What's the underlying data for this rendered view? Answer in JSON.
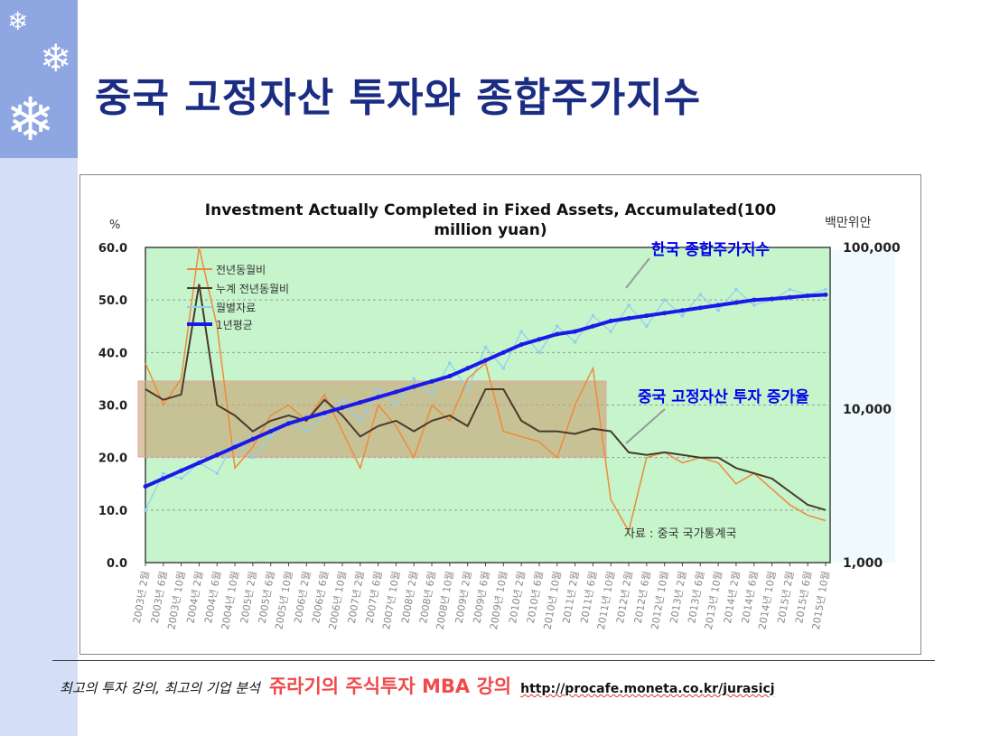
{
  "slide": {
    "title": "중국 고정자산 투자와 종합주가지수",
    "footer_left": "최고의 투자 강의, 최고의 기업 분석",
    "footer_brand": "쥬라기의 주식투자 MBA 강의",
    "footer_url": "http://procafe.moneta.co.kr/jurasicj"
  },
  "chart_data": {
    "type": "line",
    "title_line1": "Investment Actually Completed in Fixed Assets, Accumulated(100",
    "title_line2": "million yuan)",
    "ylabel_left": "%",
    "ylabel_right": "백만위안",
    "ylim": [
      0,
      60
    ],
    "yticks_left": [
      "60.0",
      "50.0",
      "40.0",
      "30.0",
      "20.0",
      "10.0",
      "0.0"
    ],
    "yticks_right": [
      "100,000",
      "10,000",
      "1,000"
    ],
    "grid": true,
    "legend_position": "top-left",
    "legend": [
      "전년동월비",
      "누계 전년동월비",
      "월별자료",
      "1년평균"
    ],
    "annotations": [
      "한국 종합주가지수",
      "중국 고정자산 투자 증가율",
      "자료 : 중국 국가통계국"
    ],
    "colors": {
      "yoy": "#f08a3a",
      "cumulative": "#4a3a2a",
      "monthly": "#8fd0f0",
      "avg": "#1a1ae8",
      "plot_bg": "#c8f5cc",
      "band": "#c8a878"
    },
    "categories": [
      "2003년 2월",
      "2003년 6월",
      "2003년 10월",
      "2004년 2월",
      "2004년 6월",
      "2004년 10월",
      "2005년 2월",
      "2005년 6월",
      "2005년 10월",
      "2006년 2월",
      "2006년 6월",
      "2006년 10월",
      "2007년 2월",
      "2007년 6월",
      "2007년 10월",
      "2008년 2월",
      "2008년 6월",
      "2008년 10월",
      "2009년 2월",
      "2009년 6월",
      "2009년 10월",
      "2010년 2월",
      "2010년 6월",
      "2010년 10월",
      "2011년 2월",
      "2011년 6월",
      "2011년 10월",
      "2012년 2월",
      "2012년 6월",
      "2012년 10월",
      "2013년 2월",
      "2013년 6월",
      "2013년 10월",
      "2014년 2월",
      "2014년 6월",
      "2014년 10월",
      "2015년 2월",
      "2015년 6월",
      "2015년 10월"
    ],
    "series": [
      {
        "name": "전년동월비",
        "values": [
          38,
          30,
          35,
          60,
          45,
          18,
          22,
          28,
          30,
          27,
          32,
          25,
          18,
          30,
          26,
          20,
          30,
          27,
          35,
          38,
          25,
          24,
          23,
          20,
          30,
          37,
          12,
          6,
          20,
          21,
          19,
          20,
          19,
          15,
          17,
          14,
          11,
          9,
          8
        ]
      },
      {
        "name": "누계 전년동월비",
        "values": [
          33,
          31,
          32,
          53,
          30,
          28,
          25,
          27,
          28,
          27,
          31,
          28,
          24,
          26,
          27,
          25,
          27,
          28,
          26,
          33,
          33,
          27,
          25,
          25,
          24.5,
          25.5,
          25,
          21,
          20.5,
          21,
          20.5,
          20,
          20,
          18,
          17,
          16,
          13.5,
          11,
          10
        ]
      },
      {
        "name": "월별자료",
        "values": [
          10,
          17,
          16,
          19,
          17,
          23,
          20,
          24,
          27,
          25,
          28,
          31,
          27,
          33,
          30,
          35,
          32,
          38,
          33,
          41,
          37,
          44,
          40,
          45,
          42,
          47,
          44,
          49,
          45,
          50,
          47,
          51,
          48,
          52,
          49,
          50,
          52,
          51,
          52
        ]
      },
      {
        "name": "1년평균",
        "values": [
          14.5,
          16,
          17.5,
          19,
          20.5,
          22,
          23.5,
          25,
          26.5,
          27.5,
          28.5,
          29.5,
          30.5,
          31.5,
          32.5,
          33.5,
          34.5,
          35.5,
          37,
          38.5,
          40,
          41.5,
          42.5,
          43.5,
          44,
          45,
          46,
          46.5,
          47,
          47.5,
          48,
          48.5,
          49,
          49.5,
          50,
          50.2,
          50.5,
          50.8,
          51
        ]
      }
    ]
  }
}
